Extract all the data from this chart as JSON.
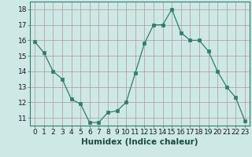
{
  "x": [
    0,
    1,
    2,
    3,
    4,
    5,
    6,
    7,
    8,
    9,
    10,
    11,
    12,
    13,
    14,
    15,
    16,
    17,
    18,
    19,
    20,
    21,
    22,
    23
  ],
  "y": [
    15.9,
    15.2,
    14.0,
    13.5,
    12.2,
    11.9,
    10.7,
    10.7,
    11.35,
    11.45,
    12.0,
    13.9,
    15.8,
    17.0,
    17.0,
    18.0,
    16.5,
    16.0,
    16.0,
    15.3,
    14.0,
    13.0,
    12.3,
    10.8
  ],
  "line_color": "#2e7d6e",
  "marker": "s",
  "marker_size": 2.2,
  "bg_color": "#cde8e5",
  "grid_color": "#b09898",
  "xlabel": "Humidex (Indice chaleur)",
  "xlim": [
    -0.5,
    23.5
  ],
  "ylim": [
    10.5,
    18.5
  ],
  "yticks": [
    11,
    12,
    13,
    14,
    15,
    16,
    17,
    18
  ],
  "xticks": [
    0,
    1,
    2,
    3,
    4,
    5,
    6,
    7,
    8,
    9,
    10,
    11,
    12,
    13,
    14,
    15,
    16,
    17,
    18,
    19,
    20,
    21,
    22,
    23
  ],
  "xlabel_fontsize": 7.5,
  "tick_fontsize": 6.5
}
